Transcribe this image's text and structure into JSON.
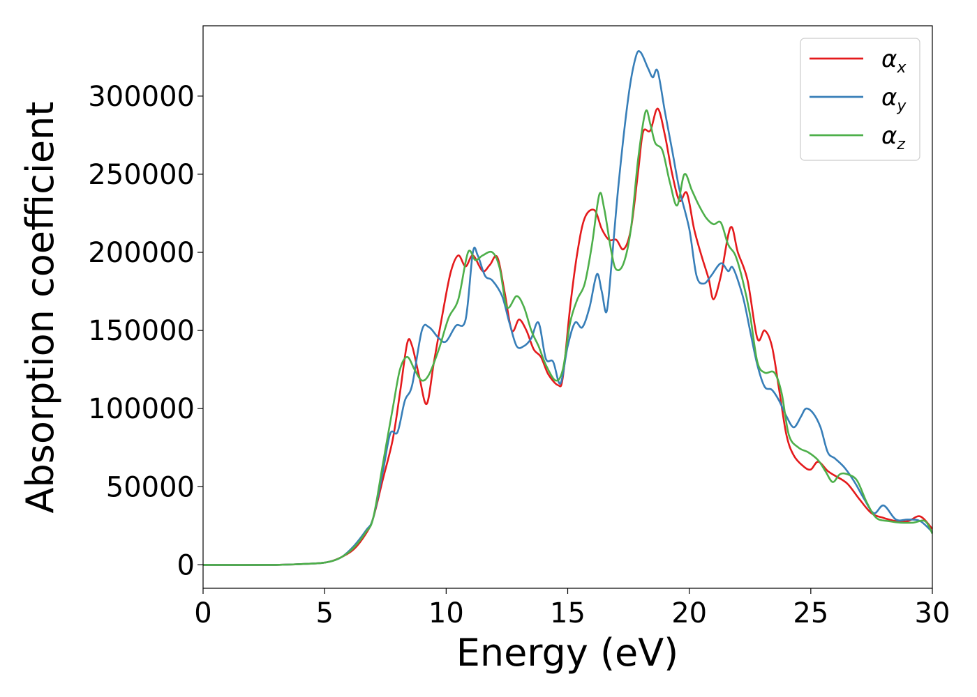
{
  "chart_data": {
    "type": "line",
    "title": "",
    "xlabel": "Energy (eV)",
    "ylabel": "Absorption coefficient",
    "xlim": [
      0,
      30
    ],
    "ylim": [
      -15000,
      345000
    ],
    "xticks": [
      "0",
      "5",
      "10",
      "15",
      "20",
      "25",
      "30"
    ],
    "yticks": [
      "0",
      "50000",
      "100000",
      "150000",
      "200000",
      "250000",
      "300000"
    ],
    "grid": false,
    "legend": "top-right",
    "series": [
      {
        "name": "α",
        "subscript": "x",
        "color": "#e41a1c",
        "points": [
          [
            0,
            0
          ],
          [
            3,
            0
          ],
          [
            4.5,
            800
          ],
          [
            5.2,
            2000
          ],
          [
            5.7,
            5000
          ],
          [
            6.2,
            10000
          ],
          [
            6.7,
            20000
          ],
          [
            7.0,
            30000
          ],
          [
            7.4,
            55000
          ],
          [
            7.8,
            80000
          ],
          [
            8.1,
            110000
          ],
          [
            8.4,
            142000
          ],
          [
            8.6,
            140000
          ],
          [
            8.9,
            120000
          ],
          [
            9.2,
            103000
          ],
          [
            9.5,
            130000
          ],
          [
            9.9,
            165000
          ],
          [
            10.2,
            188000
          ],
          [
            10.5,
            198000
          ],
          [
            10.8,
            191000
          ],
          [
            11.1,
            198000
          ],
          [
            11.5,
            188000
          ],
          [
            11.8,
            192000
          ],
          [
            12.1,
            197000
          ],
          [
            12.4,
            175000
          ],
          [
            12.7,
            150000
          ],
          [
            13.0,
            157000
          ],
          [
            13.3,
            150000
          ],
          [
            13.6,
            138000
          ],
          [
            13.9,
            133000
          ],
          [
            14.2,
            122000
          ],
          [
            14.6,
            115000
          ],
          [
            14.8,
            120000
          ],
          [
            15.1,
            165000
          ],
          [
            15.4,
            200000
          ],
          [
            15.7,
            222000
          ],
          [
            16.1,
            227000
          ],
          [
            16.4,
            215000
          ],
          [
            16.7,
            208000
          ],
          [
            17.0,
            208000
          ],
          [
            17.3,
            202000
          ],
          [
            17.6,
            215000
          ],
          [
            17.9,
            252000
          ],
          [
            18.1,
            277000
          ],
          [
            18.4,
            278000
          ],
          [
            18.7,
            292000
          ],
          [
            19.0,
            275000
          ],
          [
            19.3,
            250000
          ],
          [
            19.6,
            233000
          ],
          [
            19.9,
            238000
          ],
          [
            20.2,
            215000
          ],
          [
            20.5,
            198000
          ],
          [
            20.8,
            183000
          ],
          [
            21.0,
            170000
          ],
          [
            21.3,
            185000
          ],
          [
            21.7,
            216000
          ],
          [
            22.0,
            200000
          ],
          [
            22.4,
            182000
          ],
          [
            22.8,
            145000
          ],
          [
            23.1,
            150000
          ],
          [
            23.4,
            140000
          ],
          [
            23.7,
            112000
          ],
          [
            24.0,
            83000
          ],
          [
            24.3,
            70000
          ],
          [
            24.7,
            63000
          ],
          [
            25.0,
            61000
          ],
          [
            25.3,
            66000
          ],
          [
            25.7,
            60000
          ],
          [
            26.0,
            57000
          ],
          [
            26.5,
            52000
          ],
          [
            27.0,
            42000
          ],
          [
            27.5,
            33000
          ],
          [
            28.0,
            30000
          ],
          [
            28.5,
            28000
          ],
          [
            29.0,
            28000
          ],
          [
            29.5,
            31000
          ],
          [
            30.0,
            23000
          ]
        ]
      },
      {
        "name": "α",
        "subscript": "y",
        "color": "#377eb8",
        "points": [
          [
            0,
            0
          ],
          [
            3,
            0
          ],
          [
            4.5,
            800
          ],
          [
            5.2,
            2000
          ],
          [
            5.7,
            5000
          ],
          [
            6.2,
            12000
          ],
          [
            6.7,
            22000
          ],
          [
            7.0,
            30000
          ],
          [
            7.4,
            60000
          ],
          [
            7.7,
            84000
          ],
          [
            8.0,
            85000
          ],
          [
            8.3,
            105000
          ],
          [
            8.6,
            115000
          ],
          [
            9.0,
            150000
          ],
          [
            9.3,
            152000
          ],
          [
            9.7,
            145000
          ],
          [
            10.0,
            143000
          ],
          [
            10.4,
            153000
          ],
          [
            10.8,
            157000
          ],
          [
            11.1,
            200000
          ],
          [
            11.3,
            198000
          ],
          [
            11.6,
            185000
          ],
          [
            11.9,
            182000
          ],
          [
            12.3,
            172000
          ],
          [
            12.6,
            155000
          ],
          [
            12.9,
            140000
          ],
          [
            13.2,
            140000
          ],
          [
            13.5,
            145000
          ],
          [
            13.8,
            155000
          ],
          [
            14.1,
            132000
          ],
          [
            14.4,
            130000
          ],
          [
            14.7,
            116000
          ],
          [
            15.0,
            140000
          ],
          [
            15.3,
            155000
          ],
          [
            15.6,
            152000
          ],
          [
            15.9,
            165000
          ],
          [
            16.2,
            186000
          ],
          [
            16.4,
            175000
          ],
          [
            16.6,
            162000
          ],
          [
            16.8,
            192000
          ],
          [
            17.1,
            245000
          ],
          [
            17.5,
            300000
          ],
          [
            17.8,
            325000
          ],
          [
            18.0,
            328000
          ],
          [
            18.3,
            318000
          ],
          [
            18.5,
            312000
          ],
          [
            18.7,
            316000
          ],
          [
            19.0,
            290000
          ],
          [
            19.3,
            265000
          ],
          [
            19.6,
            240000
          ],
          [
            20.0,
            215000
          ],
          [
            20.3,
            185000
          ],
          [
            20.6,
            180000
          ],
          [
            20.9,
            185000
          ],
          [
            21.3,
            193000
          ],
          [
            21.6,
            188000
          ],
          [
            21.8,
            190000
          ],
          [
            22.2,
            172000
          ],
          [
            22.5,
            150000
          ],
          [
            22.8,
            128000
          ],
          [
            23.1,
            114000
          ],
          [
            23.4,
            112000
          ],
          [
            23.7,
            105000
          ],
          [
            24.0,
            95000
          ],
          [
            24.3,
            88000
          ],
          [
            24.6,
            95000
          ],
          [
            24.8,
            100000
          ],
          [
            25.1,
            97000
          ],
          [
            25.4,
            88000
          ],
          [
            25.7,
            72000
          ],
          [
            26.0,
            68000
          ],
          [
            26.4,
            62000
          ],
          [
            26.8,
            53000
          ],
          [
            27.2,
            42000
          ],
          [
            27.6,
            33000
          ],
          [
            28.0,
            38000
          ],
          [
            28.5,
            29000
          ],
          [
            29.0,
            29000
          ],
          [
            29.5,
            28000
          ],
          [
            30.0,
            21000
          ]
        ]
      },
      {
        "name": "α",
        "subscript": "z",
        "color": "#4daf4a",
        "points": [
          [
            0,
            0
          ],
          [
            3,
            0
          ],
          [
            4.5,
            800
          ],
          [
            5.2,
            2000
          ],
          [
            5.7,
            5000
          ],
          [
            6.2,
            11000
          ],
          [
            6.7,
            21000
          ],
          [
            7.0,
            30000
          ],
          [
            7.4,
            65000
          ],
          [
            7.8,
            100000
          ],
          [
            8.1,
            125000
          ],
          [
            8.4,
            133000
          ],
          [
            8.7,
            125000
          ],
          [
            9.0,
            118000
          ],
          [
            9.3,
            122000
          ],
          [
            9.7,
            138000
          ],
          [
            10.1,
            158000
          ],
          [
            10.5,
            170000
          ],
          [
            10.9,
            200000
          ],
          [
            11.2,
            195000
          ],
          [
            11.5,
            198000
          ],
          [
            11.9,
            200000
          ],
          [
            12.2,
            190000
          ],
          [
            12.5,
            165000
          ],
          [
            12.9,
            172000
          ],
          [
            13.2,
            165000
          ],
          [
            13.5,
            150000
          ],
          [
            13.8,
            140000
          ],
          [
            14.1,
            128000
          ],
          [
            14.5,
            118000
          ],
          [
            14.8,
            125000
          ],
          [
            15.1,
            155000
          ],
          [
            15.4,
            170000
          ],
          [
            15.7,
            180000
          ],
          [
            16.0,
            205000
          ],
          [
            16.3,
            237000
          ],
          [
            16.5,
            228000
          ],
          [
            16.8,
            200000
          ],
          [
            17.0,
            189000
          ],
          [
            17.3,
            193000
          ],
          [
            17.6,
            215000
          ],
          [
            17.9,
            260000
          ],
          [
            18.2,
            290000
          ],
          [
            18.4,
            282000
          ],
          [
            18.6,
            270000
          ],
          [
            18.9,
            265000
          ],
          [
            19.2,
            245000
          ],
          [
            19.5,
            230000
          ],
          [
            19.8,
            250000
          ],
          [
            20.1,
            240000
          ],
          [
            20.4,
            230000
          ],
          [
            20.7,
            222000
          ],
          [
            21.0,
            218000
          ],
          [
            21.3,
            219000
          ],
          [
            21.6,
            205000
          ],
          [
            21.9,
            198000
          ],
          [
            22.2,
            182000
          ],
          [
            22.5,
            160000
          ],
          [
            22.8,
            130000
          ],
          [
            23.1,
            123000
          ],
          [
            23.5,
            123000
          ],
          [
            23.8,
            110000
          ],
          [
            24.1,
            83000
          ],
          [
            24.5,
            75000
          ],
          [
            24.9,
            72000
          ],
          [
            25.3,
            67000
          ],
          [
            25.6,
            60000
          ],
          [
            25.9,
            53000
          ],
          [
            26.2,
            58000
          ],
          [
            26.5,
            58000
          ],
          [
            26.9,
            54000
          ],
          [
            27.3,
            40000
          ],
          [
            27.7,
            30000
          ],
          [
            28.2,
            28000
          ],
          [
            28.7,
            27000
          ],
          [
            29.2,
            27000
          ],
          [
            29.7,
            28000
          ],
          [
            30.0,
            20000
          ]
        ]
      }
    ]
  }
}
